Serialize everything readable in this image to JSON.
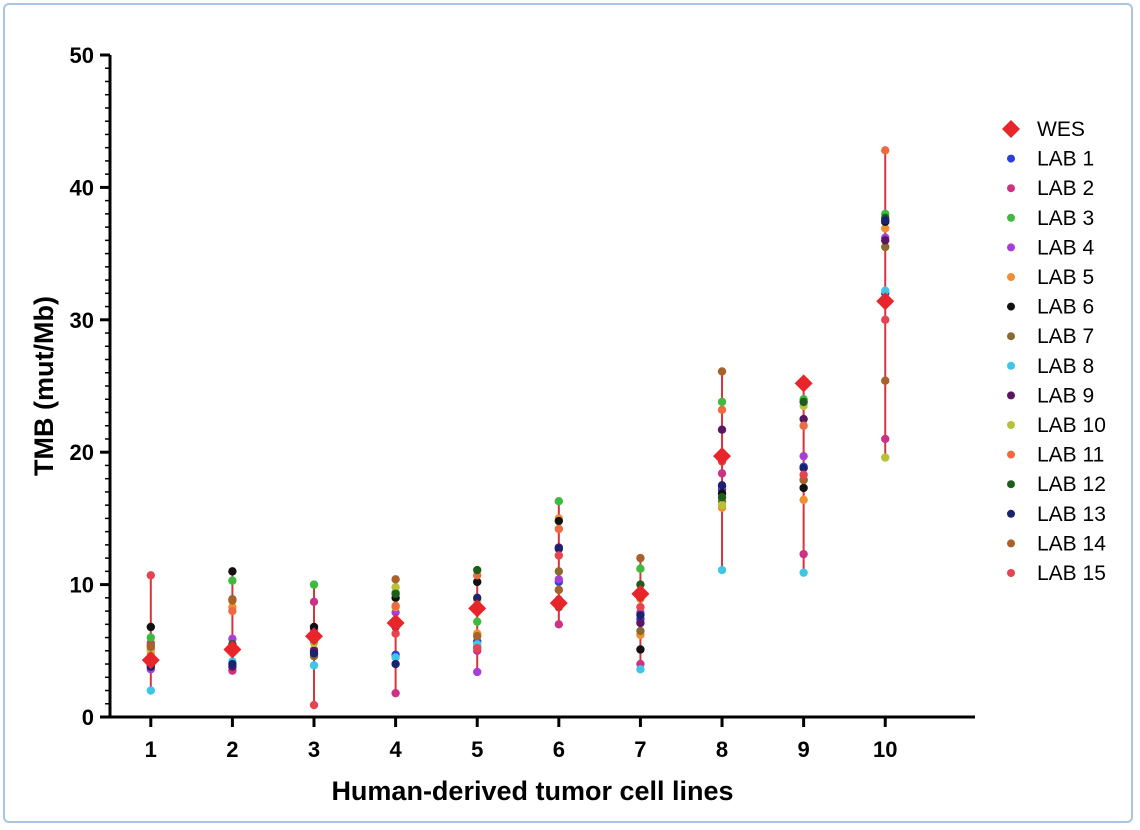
{
  "chart_data": {
    "type": "scatter",
    "title": "",
    "xlabel": "Human-derived tumor cell lines",
    "ylabel": "TMB (mut/Mb)",
    "xlim": [
      0.5,
      11.1
    ],
    "ylim": [
      0,
      50
    ],
    "x_ticks": [
      "1",
      "2",
      "3",
      "4",
      "5",
      "6",
      "7",
      "8",
      "9",
      "10"
    ],
    "y_ticks": [
      "0",
      "10",
      "20",
      "30",
      "40",
      "50"
    ],
    "grid": false,
    "legend_position": "right",
    "range_line_color": "#d7343c",
    "wes": {
      "name": "WES",
      "color": "#e8252b",
      "values": [
        4.3,
        5.1,
        6.1,
        7.1,
        8.2,
        8.6,
        9.3,
        19.7,
        25.2,
        31.4
      ]
    },
    "series": [
      {
        "name": "LAB 1",
        "color": "#2b3fd9",
        "values": [
          4.1,
          5.2,
          6.2,
          4.7,
          5.7,
          10.2,
          7.4,
          17.2,
          18.9,
          32.0
        ]
      },
      {
        "name": "LAB 2",
        "color": "#cc3385",
        "values": [
          5.6,
          3.5,
          8.7,
          1.8,
          5.0,
          7.0,
          4.0,
          18.4,
          12.3,
          21.0
        ]
      },
      {
        "name": "LAB 3",
        "color": "#3dbb3f",
        "values": [
          6.0,
          10.3,
          10.0,
          9.4,
          7.2,
          16.3,
          11.2,
          23.8,
          24.0,
          38.0
        ]
      },
      {
        "name": "LAB 4",
        "color": "#a73ed6",
        "values": [
          3.6,
          5.9,
          6.6,
          7.9,
          3.4,
          10.4,
          7.9,
          17.4,
          19.7,
          36.2
        ]
      },
      {
        "name": "LAB 5",
        "color": "#f08f30",
        "values": [
          5.1,
          8.3,
          5.1,
          8.3,
          6.3,
          15.0,
          6.2,
          15.8,
          16.4,
          36.9
        ]
      },
      {
        "name": "LAB 6",
        "color": "#111111",
        "values": [
          6.8,
          11.0,
          6.8,
          9.0,
          10.2,
          14.8,
          5.1,
          16.9,
          17.3,
          37.4
        ]
      },
      {
        "name": "LAB 7",
        "color": "#8b6a2f",
        "values": [
          5.4,
          8.9,
          4.6,
          7.2,
          5.3,
          11.0,
          6.5,
          16.3,
          17.9,
          35.5
        ]
      },
      {
        "name": "LAB 8",
        "color": "#3fc6e6",
        "values": [
          2.0,
          4.2,
          3.9,
          4.5,
          5.5,
          8.9,
          3.6,
          11.1,
          10.9,
          32.2
        ]
      },
      {
        "name": "LAB 9",
        "color": "#5a1563",
        "values": [
          3.9,
          3.8,
          5.0,
          6.8,
          8.4,
          12.8,
          7.1,
          21.7,
          22.5,
          36.0
        ]
      },
      {
        "name": "LAB 10",
        "color": "#b8c13a",
        "values": [
          4.9,
          5.0,
          5.6,
          9.8,
          8.8,
          9.6,
          8.9,
          16.0,
          23.5,
          19.6
        ]
      },
      {
        "name": "LAB 11",
        "color": "#ee6b3f",
        "values": [
          4.6,
          8.0,
          6.3,
          8.4,
          10.7,
          14.2,
          9.0,
          23.2,
          22.0,
          42.8
        ]
      },
      {
        "name": "LAB 12",
        "color": "#1d5e1f",
        "values": [
          4.5,
          5.5,
          5.9,
          9.3,
          11.1,
          8.3,
          10.0,
          16.6,
          23.8,
          37.7
        ]
      },
      {
        "name": "LAB 13",
        "color": "#1b2270",
        "values": [
          3.8,
          4.0,
          4.8,
          4.0,
          9.0,
          12.7,
          7.7,
          17.5,
          18.8,
          37.5
        ]
      },
      {
        "name": "LAB 14",
        "color": "#a8612a",
        "values": [
          5.3,
          8.8,
          5.8,
          10.4,
          6.1,
          9.6,
          12.0,
          26.1,
          17.9,
          25.4
        ]
      },
      {
        "name": "LAB 15",
        "color": "#e54552",
        "values": [
          10.7,
          4.9,
          0.9,
          6.3,
          5.2,
          12.2,
          8.3,
          19.3,
          18.3,
          30.0
        ]
      }
    ]
  }
}
